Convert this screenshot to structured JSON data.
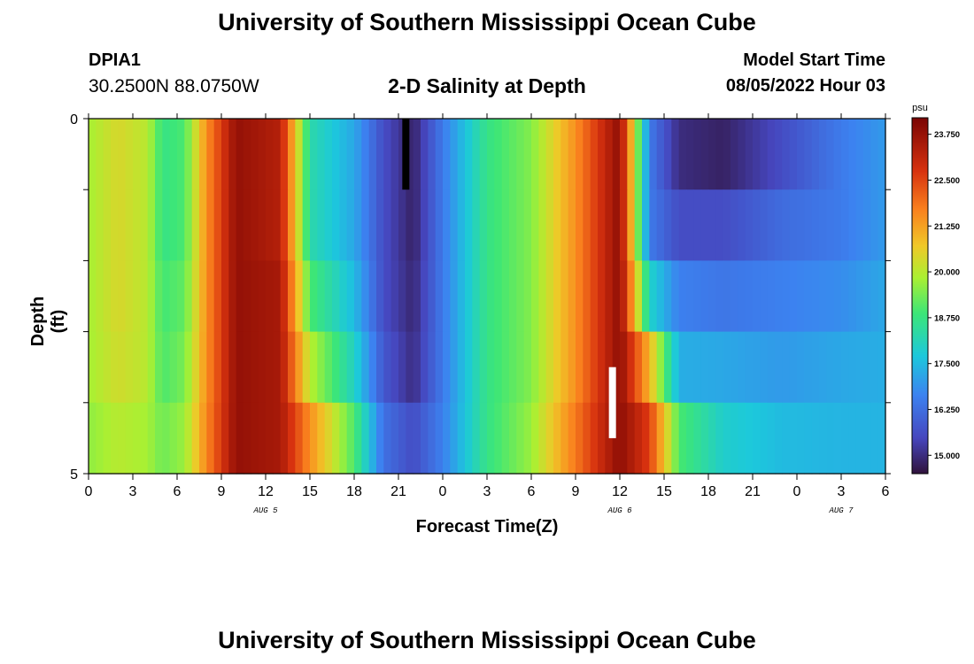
{
  "header": {
    "title": "University of Southern Mississippi Ocean Cube",
    "station": "DPIA1",
    "coordinates": "30.2500N  88.0750W",
    "subtitle": "2-D Salinity at Depth",
    "model_start_label": "Model Start Time",
    "model_start_value": "08/05/2022 Hour 03",
    "footer_title": "University of Southern Mississippi Ocean Cube"
  },
  "chart_data": {
    "type": "heatmap",
    "xlabel": "Forecast Time(Z)",
    "ylabel": "Depth (ft)",
    "xlim": [
      0,
      54
    ],
    "ylim": [
      0,
      5
    ],
    "x_ticks": [
      {
        "x": 0,
        "label": "0"
      },
      {
        "x": 3,
        "label": "3"
      },
      {
        "x": 6,
        "label": "6"
      },
      {
        "x": 9,
        "label": "9"
      },
      {
        "x": 12,
        "label": "12"
      },
      {
        "x": 15,
        "label": "15"
      },
      {
        "x": 18,
        "label": "18"
      },
      {
        "x": 21,
        "label": "21"
      },
      {
        "x": 24,
        "label": "0"
      },
      {
        "x": 27,
        "label": "3"
      },
      {
        "x": 30,
        "label": "6"
      },
      {
        "x": 33,
        "label": "9"
      },
      {
        "x": 36,
        "label": "12"
      },
      {
        "x": 39,
        "label": "15"
      },
      {
        "x": 42,
        "label": "18"
      },
      {
        "x": 45,
        "label": "21"
      },
      {
        "x": 48,
        "label": "0"
      },
      {
        "x": 51,
        "label": "3"
      },
      {
        "x": 54,
        "label": "6"
      }
    ],
    "date_labels": [
      {
        "x": 12,
        "label": "AUG 5"
      },
      {
        "x": 36,
        "label": "AUG 6"
      },
      {
        "x": 51,
        "label": "AUG 7"
      }
    ],
    "y_ticks": [
      {
        "y": 0,
        "label": "0"
      },
      {
        "y": 5,
        "label": "5"
      }
    ],
    "colorbar": {
      "unit": "psu",
      "min": 14.5,
      "max": 24.2,
      "labels": [
        "23.750",
        "22.500",
        "21.250",
        "20.000",
        "18.750",
        "17.500",
        "16.250",
        "15.000"
      ]
    },
    "depth_layers": [
      0,
      1,
      2,
      3,
      4,
      5
    ],
    "time_keyframes": [
      0,
      2,
      4,
      5,
      6.5,
      8,
      10,
      13,
      15,
      18,
      20,
      22,
      24,
      27,
      30,
      33,
      36,
      38,
      40,
      43,
      47,
      51,
      54
    ],
    "salinity_by_layer": [
      [
        19.8,
        20.4,
        20.0,
        18.7,
        19.0,
        21.5,
        23.8,
        23.3,
        18.3,
        17.2,
        15.6,
        14.8,
        16.5,
        18.7,
        19.5,
        21.5,
        23.9,
        16.5,
        15.0,
        14.8,
        15.6,
        16.5,
        17.0
      ],
      [
        19.8,
        20.4,
        20.0,
        18.7,
        19.0,
        21.5,
        23.8,
        23.3,
        18.3,
        17.2,
        15.6,
        14.8,
        16.5,
        18.7,
        19.5,
        21.5,
        23.9,
        16.5,
        15.6,
        15.6,
        16.2,
        16.5,
        17.0
      ],
      [
        19.8,
        20.4,
        20.0,
        18.9,
        19.2,
        21.5,
        23.8,
        23.5,
        19.0,
        17.5,
        15.6,
        14.9,
        16.5,
        18.7,
        19.5,
        21.5,
        23.9,
        18.0,
        16.6,
        16.4,
        16.6,
        16.8,
        17.2
      ],
      [
        19.8,
        20.3,
        20.0,
        19.0,
        19.4,
        21.5,
        23.8,
        23.5,
        20.0,
        18.0,
        15.8,
        15.0,
        16.5,
        18.7,
        19.5,
        21.5,
        23.9,
        21.0,
        17.3,
        17.2,
        17.0,
        17.2,
        17.3
      ],
      [
        19.6,
        20.0,
        19.8,
        19.3,
        19.7,
        21.6,
        23.8,
        23.5,
        21.5,
        19.0,
        16.3,
        15.6,
        16.6,
        18.7,
        19.7,
        21.8,
        23.9,
        22.6,
        19.0,
        17.9,
        17.5,
        17.4,
        17.4
      ]
    ],
    "markers": [
      {
        "name": "black-marker",
        "x": 21.5,
        "depth_from": 0,
        "depth_to": 1,
        "color": "#000000"
      },
      {
        "name": "white-marker",
        "x": 35.5,
        "depth_from": 3.5,
        "depth_to": 4.5,
        "color": "#ffffff"
      }
    ]
  }
}
